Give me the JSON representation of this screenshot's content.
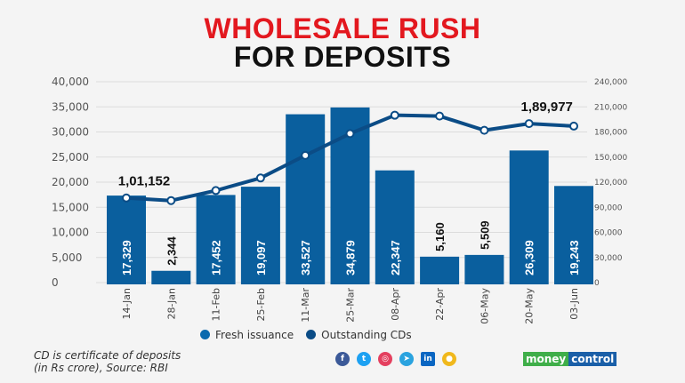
{
  "title_line1": "WHOLESALE RUSH",
  "title_line2": "FOR DEPOSITS",
  "chart_data": {
    "type": "bar+line",
    "categories": [
      "14-Jan",
      "28-Jan",
      "11-Feb",
      "25-Feb",
      "11-Mar",
      "25-Mar",
      "08-Apr",
      "22-Apr",
      "06-May",
      "20-May",
      "03-Jun"
    ],
    "series": [
      {
        "name": "Fresh issuance",
        "type": "bar",
        "axis": "left",
        "values": [
          17329,
          2344,
          17452,
          19097,
          33527,
          34879,
          22347,
          5160,
          5509,
          26309,
          19243
        ],
        "labels": [
          "17,329",
          "2,344",
          "17,452",
          "19,097",
          "33,527",
          "34,879",
          "22,347",
          "5,160",
          "5,509",
          "26,309",
          "19,243"
        ]
      },
      {
        "name": "Outstanding CDs",
        "type": "line",
        "axis": "right",
        "values": [
          101152,
          98000,
          110000,
          125000,
          152000,
          178000,
          200000,
          199000,
          182000,
          189977,
          187000
        ],
        "annotations": [
          {
            "index": 0,
            "label": "1,01,152"
          },
          {
            "index": 9,
            "label": "1,89,977"
          }
        ]
      }
    ],
    "left_ylim": [
      0,
      40000
    ],
    "left_ticks": [
      "0",
      "5,000",
      "10,000",
      "15,000",
      "20,000",
      "25,000",
      "30,000",
      "35,000",
      "40,000"
    ],
    "right_ylim": [
      0,
      240000
    ],
    "right_ticks": [
      "0",
      "30,000",
      "60,000",
      "90,000",
      "120,000",
      "150,000",
      "180,000",
      "210,000",
      "240,000"
    ],
    "grid": true,
    "legend": "bottom-center",
    "colors": {
      "bar": "#0a5f9e",
      "line": "#0b4c86"
    }
  },
  "legend": {
    "bar": "Fresh issuance",
    "line": "Outstanding CDs"
  },
  "note_line1": "CD is certificate of deposits",
  "note_line2": "(in Rs crore), Source: RBI",
  "brand": {
    "part1": "money",
    "part2": "control"
  },
  "social": [
    "f",
    "t",
    "ig",
    "tg",
    "in",
    "kk"
  ]
}
